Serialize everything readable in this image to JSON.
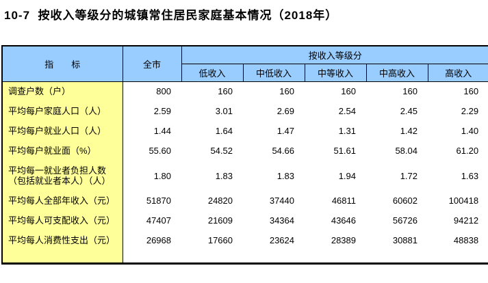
{
  "title": "10-7  按收入等级分的城镇常住居民家庭基本情况（2018年）",
  "colors": {
    "header_bg": "#99CCFF",
    "indicator_bg": "#FFFF99",
    "border": "#000000",
    "text": "#000000",
    "page_bg": "#FFFFFF"
  },
  "table": {
    "indicator_header": "指　　标",
    "city_header": "全市",
    "group_header": "按收入等级分",
    "income_levels": [
      "低收入",
      "中低收入",
      "中等收入",
      "中高收入",
      "高收入"
    ],
    "rows": [
      {
        "label": "调查户数（户）",
        "values": [
          "800",
          "160",
          "160",
          "160",
          "160",
          "160"
        ]
      },
      {
        "label": "平均每户家庭人口（人）",
        "values": [
          "2.59",
          "3.01",
          "2.69",
          "2.54",
          "2.45",
          "2.29"
        ]
      },
      {
        "label": "平均每户就业人口（人）",
        "values": [
          "1.44",
          "1.64",
          "1.47",
          "1.31",
          "1.42",
          "1.40"
        ]
      },
      {
        "label": "平均每户就业面（%）",
        "values": [
          "55.60",
          "54.52",
          "54.66",
          "51.61",
          "58.04",
          "61.20"
        ]
      },
      {
        "label": "平均每一就业者负担人数",
        "label2": "（包括就业者本人）（人）",
        "values": [
          "1.80",
          "1.83",
          "1.83",
          "1.94",
          "1.72",
          "1.63"
        ]
      },
      {
        "label": "平均每人全部年收入（元）",
        "values": [
          "51870",
          "24820",
          "37440",
          "46811",
          "60602",
          "100418"
        ]
      },
      {
        "label": "平均每人可支配收入（元）",
        "values": [
          "47407",
          "21609",
          "34364",
          "43646",
          "56726",
          "94212"
        ]
      },
      {
        "label": "平均每人消费性支出（元）",
        "values": [
          "26968",
          "17660",
          "23624",
          "28389",
          "30881",
          "48838"
        ]
      }
    ]
  }
}
